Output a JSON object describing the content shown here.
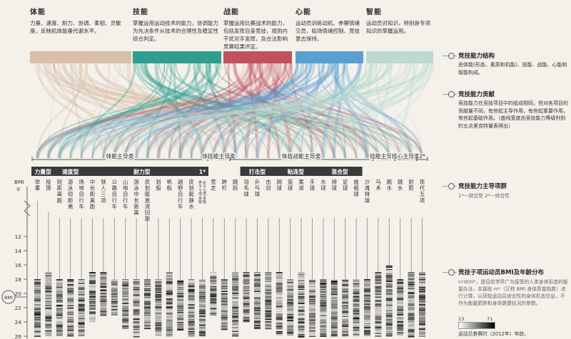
{
  "abilities": [
    {
      "title": "体能",
      "desc": "力量、速度、耐力、协调、柔韧、灵敏度，反映机体能量代谢水平。",
      "color": "#d8bfa8"
    },
    {
      "title": "技能",
      "desc": "掌握运用运动技术的能力，协调能力为先决条件从技术的合理性及稳定性综合判定。",
      "color": "#2f9e8f"
    },
    {
      "title": "战能",
      "desc": "掌握运用比赛战术的能力，包括发挥自身竞技，规则内干扰对手发挥，及合法影响竞赛结果评定。",
      "color": "#c2505f"
    },
    {
      "title": "心能",
      "desc": "运动员训练动机、参赛情绪交员、临场情绪控制、竞技意志保持。",
      "color": "#5a9fcf"
    },
    {
      "title": "智能",
      "desc": "运动员对知识，特别是专项知识的掌握运用。",
      "color": "#bcdacf"
    }
  ],
  "groups": [
    {
      "label": "体能主导类"
    },
    {
      "label": "体技能主导类"
    },
    {
      "label": "体技战能主导类"
    },
    {
      "label": "技能主导类"
    },
    {
      "label": "技心主导类"
    },
    {
      "label": "2*"
    }
  ],
  "subgroups": [
    {
      "label": "力量型"
    },
    {
      "label": "速度型"
    },
    {
      "label": "耐力型"
    },
    {
      "label": "1*"
    },
    {
      "label": "打击型"
    },
    {
      "label": "粘连型"
    },
    {
      "label": "混合型"
    }
  ],
  "sports": [
    "举重",
    "投掷",
    "短距离跑",
    "游泳短距离",
    "场地自行车",
    "中长距离跑",
    "铁人三项",
    "公路自行车",
    "山地自行车",
    "游泳中长距离",
    "皮划艇激流回旋",
    "划船",
    "帆船",
    "越野自行车",
    "皮划艇静水",
    "男子十项全能女子七项全能",
    "竞走",
    "跨栏",
    "跳跃",
    "羽毛球",
    "乒乓球",
    "击剑",
    "网球",
    "篮球",
    "柔道",
    "手球",
    "水球",
    "排球",
    "足球",
    "曲棍球",
    "沙滩排球",
    "马术",
    "跳水",
    "跳水",
    "射箭",
    "现代五项"
  ],
  "y_axis": {
    "label": "BMI",
    "ticks": [
      "0",
      "12",
      "14",
      "16",
      "18",
      "20",
      "22",
      "24",
      "26"
    ]
  },
  "bmi_label": "BMI",
  "side": {
    "s1_title": "竞技能力结构",
    "s1_body": "由体能(形态、素质和机能)、技能、战能、心能和智能构成。",
    "s2_title": "竞技能力贡献",
    "s2_body": "竞技能力在竞技项目中的组成相同，但对各项目的贡献量不同，有些起主导作用，有些起重要作用，有些起基础作用。（曲线宽度由竞技能力等级判别的五点里克特量表得出）",
    "s3_title": "竞技能力主导项群",
    "s3_body": "1*—综合型  2*—综合性",
    "s4_title": "竞技子项运动员BMI及年龄分布",
    "s4_body": "I=W/H²，是目前学界广为接受的人类身体形态的衡量办法，本篇取 m²（又称 BMI 身体质量指数）进行计算，以获取运动员综合性的身体形态信息，不作为衡量肥胖和身体健康状况的参数。",
    "legend_min": "13",
    "legend_max": "71",
    "legend_cap": "运动员参赛时（2012年）年龄。"
  },
  "chart_data": {
    "type": "heatmap",
    "title": "",
    "ylabel": "BMI",
    "ylim": [
      12,
      26
    ],
    "columns": [
      "举重",
      "投掷",
      "短距离跑",
      "游泳短距离",
      "场地自行车",
      "中长距离跑",
      "铁人三项",
      "公路自行车",
      "山地自行车",
      "游泳中长距离",
      "皮划艇激流回旋",
      "划船",
      "帆船",
      "越野自行车",
      "皮划艇静水",
      "男子十项全能女子七项全能",
      "竞走",
      "跨栏",
      "跳跃",
      "羽毛球",
      "乒乓球",
      "击剑",
      "网球",
      "篮球",
      "柔道",
      "手球",
      "水球",
      "排球",
      "足球",
      "曲棍球",
      "沙滩排球",
      "马术",
      "跳水",
      "跳水",
      "射箭",
      "现代五项"
    ],
    "bmi_ranges": [
      [
        18,
        26
      ],
      [
        17,
        26
      ],
      [
        18,
        26
      ],
      [
        18,
        26
      ],
      [
        18,
        26
      ],
      [
        17,
        24
      ],
      [
        17,
        23
      ],
      [
        18,
        23
      ],
      [
        18,
        25
      ],
      [
        18,
        26
      ],
      [
        18,
        25
      ],
      [
        18,
        26
      ],
      [
        17,
        26
      ],
      [
        18,
        25
      ],
      [
        18,
        26
      ],
      [
        18,
        26
      ],
      [
        17,
        23
      ],
      [
        18,
        25
      ],
      [
        17,
        26
      ],
      [
        17,
        24
      ],
      [
        17,
        25
      ],
      [
        17,
        25
      ],
      [
        17,
        26
      ],
      [
        18,
        26
      ],
      [
        17,
        26
      ],
      [
        18,
        26
      ],
      [
        18,
        26
      ],
      [
        18,
        26
      ],
      [
        18,
        26
      ],
      [
        18,
        26
      ],
      [
        18,
        26
      ],
      [
        17,
        26
      ],
      [
        16,
        26
      ],
      [
        18,
        26
      ],
      [
        17,
        26
      ],
      [
        17,
        26
      ]
    ],
    "age_range": [
      13,
      71
    ]
  }
}
